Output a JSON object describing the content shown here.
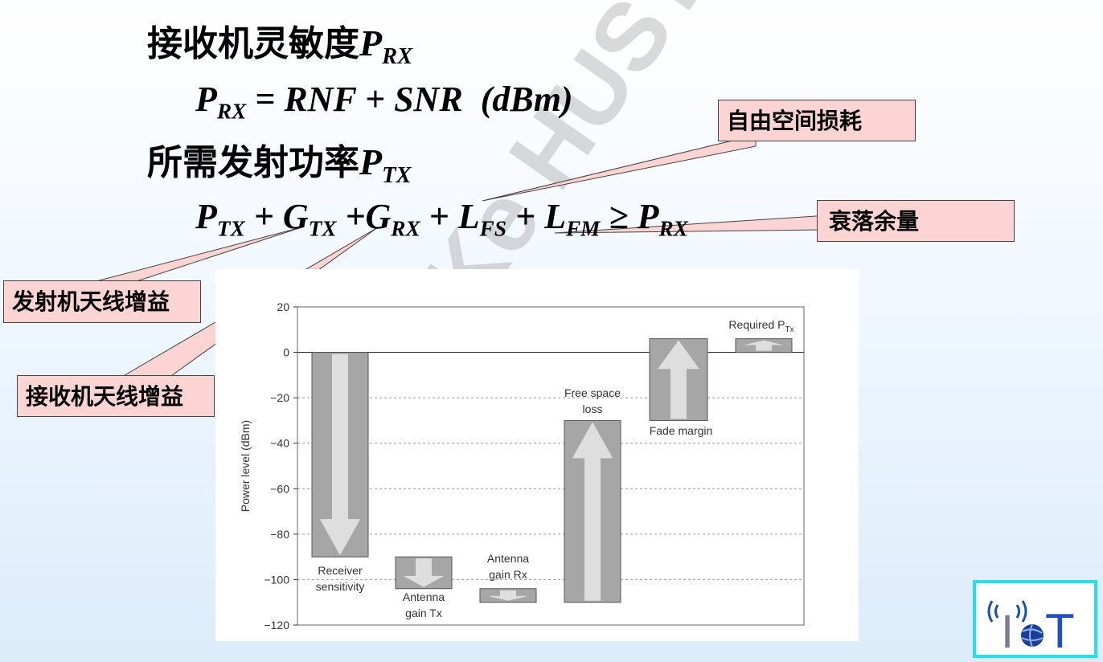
{
  "heading1": {
    "text": "接收机灵敏度",
    "sym": "P",
    "sub": "RX"
  },
  "formula1": {
    "lhs": "P",
    "lhs_sub": "RX",
    "rhs": "= RNF + SNR",
    "unit": "(dBm)"
  },
  "heading2": {
    "text": "所需发射功率",
    "sym": "P",
    "sub": "TX"
  },
  "formula2": {
    "p": "P",
    "p_sub": "TX",
    "g1": "G",
    "g1_sub": "TX",
    "g2": "G",
    "g2_sub": "RX",
    "l1": "L",
    "l1_sub": "FS",
    "l2": "L",
    "l2_sub": "FM",
    "rel": "≥",
    "r": "P",
    "r_sub": "RX"
  },
  "callouts": {
    "free_space_loss": "自由空间损耗",
    "fade_margin": "衰落余量",
    "tx_antenna_gain": "发射机天线增益",
    "rx_antenna_gain": "接收机天线增益"
  },
  "watermark": "Ke HUST",
  "chart_data": {
    "type": "bar",
    "subtype": "waterfall",
    "ylabel": "Power level (dBm)",
    "ylim": [
      -120,
      20
    ],
    "yticks": [
      -120,
      -100,
      -80,
      -60,
      -40,
      -20,
      0,
      20
    ],
    "grid": "dashed horizontal",
    "bars": [
      {
        "label": [
          "Receiver",
          "sensitivity"
        ],
        "start": 0,
        "end": -90,
        "direction": "down"
      },
      {
        "label": [
          "Antenna",
          "gain Tx"
        ],
        "start": -90,
        "end": -104,
        "direction": "down"
      },
      {
        "label": [
          "Antenna",
          "gain Rx"
        ],
        "start": -104,
        "end": -110,
        "direction": "down"
      },
      {
        "label": [
          "Free space",
          "loss"
        ],
        "start": -110,
        "end": -30,
        "direction": "up"
      },
      {
        "label": [
          "Fade margin"
        ],
        "start": -30,
        "end": 6,
        "direction": "up"
      },
      {
        "label": [
          "Required P",
          "Tx"
        ],
        "start": 0,
        "end": 6,
        "direction": "up"
      }
    ]
  },
  "colors": {
    "bar": "#a6a6a6",
    "arrow": "#dedede",
    "callout_bg": "#fcd4d4",
    "logo_border": "#22e0ec"
  },
  "logo": {
    "letters": [
      "I",
      "T"
    ],
    "icon": "iot-logo-icon"
  }
}
